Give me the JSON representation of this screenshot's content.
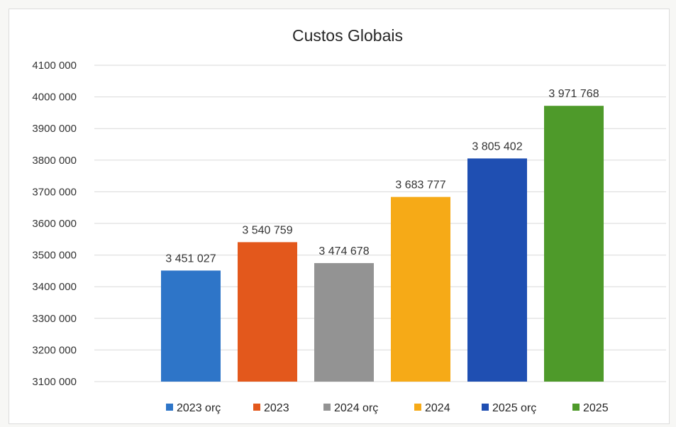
{
  "chart_data": {
    "type": "bar",
    "title": "Custos Globais",
    "xlabel": "",
    "ylabel": "",
    "ylim": [
      3100000,
      4100000
    ],
    "y_ticks": [
      3100000,
      3200000,
      3300000,
      3400000,
      3500000,
      3600000,
      3700000,
      3800000,
      3900000,
      4000000,
      4100000
    ],
    "y_tick_labels": [
      "3100 000",
      "3200 000",
      "3300 000",
      "3400 000",
      "3500 000",
      "3600 000",
      "3700 000",
      "3800 000",
      "3900 000",
      "4000 000",
      "4100 000"
    ],
    "grid": true,
    "legend": "bottom",
    "categories": [
      "2023 orç",
      "2023",
      "2024 orç",
      "2024",
      "2025 orç",
      "2025"
    ],
    "values": [
      3451027,
      3540759,
      3474678,
      3683777,
      3805402,
      3971768
    ],
    "value_labels": [
      "3 451 027",
      "3 540 759",
      "3 474 678",
      "3 683 777",
      "3 805 402",
      "3 971 768"
    ],
    "colors": [
      "#2e75c8",
      "#e3581c",
      "#939393",
      "#f6aa17",
      "#1f4fb2",
      "#4e9a2a"
    ]
  }
}
